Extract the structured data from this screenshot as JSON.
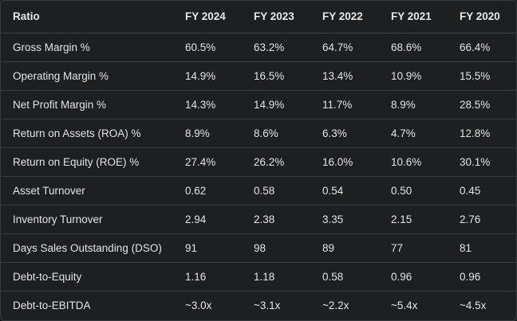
{
  "table": {
    "headers": [
      "Ratio",
      "FY 2024",
      "FY 2023",
      "FY 2022",
      "FY 2021",
      "FY 2020"
    ],
    "rows": [
      [
        "Gross Margin %",
        "60.5%",
        "63.2%",
        "64.7%",
        "68.6%",
        "66.4%"
      ],
      [
        "Operating Margin %",
        "14.9%",
        "16.5%",
        "13.4%",
        "10.9%",
        "15.5%"
      ],
      [
        "Net Profit Margin %",
        "14.3%",
        "14.9%",
        "11.7%",
        "8.9%",
        "28.5%"
      ],
      [
        "Return on Assets (ROA) %",
        "8.9%",
        "8.6%",
        "6.3%",
        "4.7%",
        "12.8%"
      ],
      [
        "Return on Equity (ROE) %",
        "27.4%",
        "26.2%",
        "16.0%",
        "10.6%",
        "30.1%"
      ],
      [
        "Asset Turnover",
        "0.62",
        "0.58",
        "0.54",
        "0.50",
        "0.45"
      ],
      [
        "Inventory Turnover",
        "2.94",
        "2.38",
        "3.35",
        "2.15",
        "2.76"
      ],
      [
        "Days Sales Outstanding (DSO)",
        "91",
        "98",
        "89",
        "77",
        "81"
      ],
      [
        "Debt-to-Equity",
        "1.16",
        "1.18",
        "0.58",
        "0.96",
        "0.96"
      ],
      [
        "Debt-to-EBITDA",
        "~3.0x",
        "~3.1x",
        "~2.2x",
        "~5.4x",
        "~4.5x"
      ]
    ]
  }
}
